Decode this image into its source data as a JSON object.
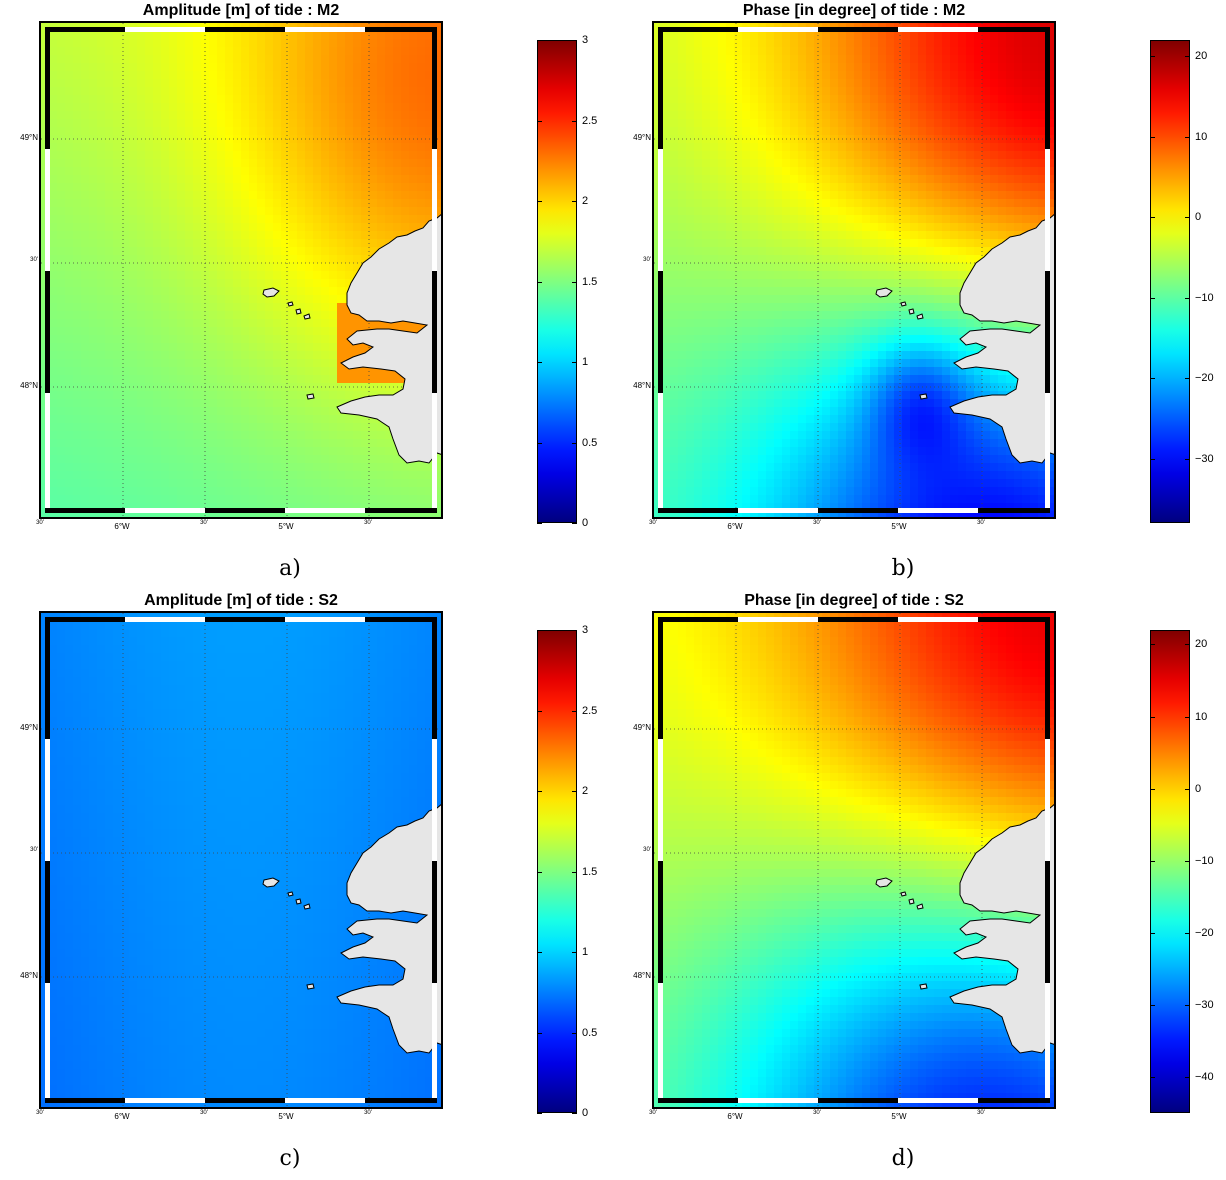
{
  "panels": [
    {
      "id": "a",
      "title": "Amplitude [m] of tide : M2",
      "label": "a)",
      "colorbar_ticks": [
        "3",
        "2.5",
        "2",
        "1.5",
        "1",
        "0.5",
        "0"
      ],
      "colorbar_range": [
        0,
        3
      ],
      "field": "m2-amplitude"
    },
    {
      "id": "b",
      "title": "Phase [in degree] of tide : M2",
      "label": "b)",
      "colorbar_ticks": [
        "20",
        "10",
        "0",
        "−10",
        "−20",
        "−30"
      ],
      "colorbar_range": [
        -38,
        22
      ],
      "field": "m2-phase"
    },
    {
      "id": "c",
      "title": "Amplitude [m] of tide : S2",
      "label": "c)",
      "colorbar_ticks": [
        "3",
        "2.5",
        "2",
        "1.5",
        "1",
        "0.5",
        "0"
      ],
      "colorbar_range": [
        0,
        3
      ],
      "field": "s2-amplitude"
    },
    {
      "id": "d",
      "title": "Phase [in degree] of tide : S2",
      "label": "d)",
      "colorbar_ticks": [
        "20",
        "10",
        "0",
        "−10",
        "−20",
        "−30",
        "−40"
      ],
      "colorbar_range": [
        -45,
        22
      ],
      "field": "s2-phase"
    }
  ],
  "axes": {
    "lat_ticks": [
      "49°N",
      "30'",
      "48°N"
    ],
    "lon_ticks": [
      "30'",
      "6°W",
      "30'",
      "5°W",
      "30'"
    ]
  },
  "colors": {
    "land": "#e6e6e6",
    "coast": "#000000"
  }
}
